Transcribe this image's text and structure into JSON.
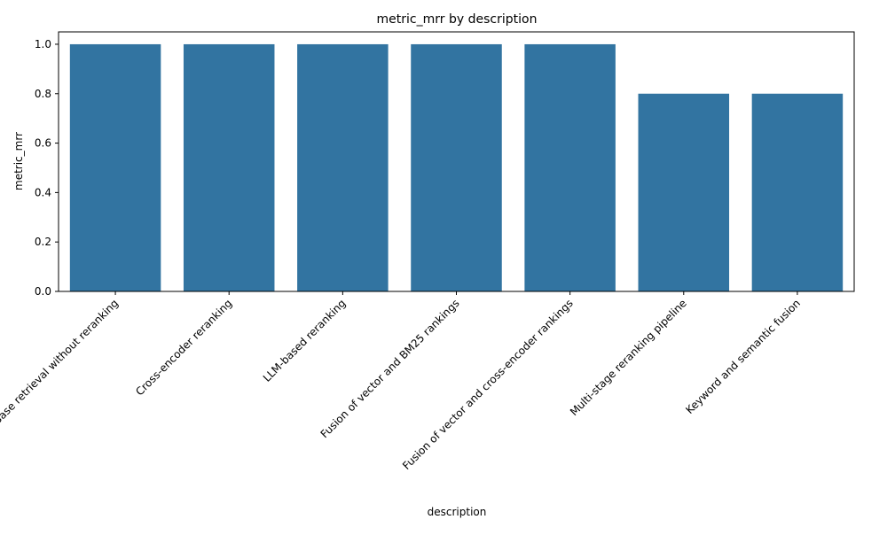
{
  "chart_data": {
    "type": "bar",
    "title": "metric_mrr by description",
    "xlabel": "description",
    "ylabel": "metric_mrr",
    "categories": [
      "Base retrieval without reranking",
      "Cross-encoder reranking",
      "LLM-based reranking",
      "Fusion of vector and BM25 rankings",
      "Fusion of vector and cross-encoder rankings",
      "Multi-stage reranking pipeline",
      "Keyword and semantic fusion"
    ],
    "values": [
      1.0,
      1.0,
      1.0,
      1.0,
      1.0,
      0.8,
      0.8
    ],
    "ylim": [
      0,
      1.05
    ],
    "yticks": [
      "0.0",
      "0.2",
      "0.4",
      "0.6",
      "0.8",
      "1.0"
    ],
    "bar_color": "#3274a1",
    "grid": false,
    "legend": "none"
  }
}
